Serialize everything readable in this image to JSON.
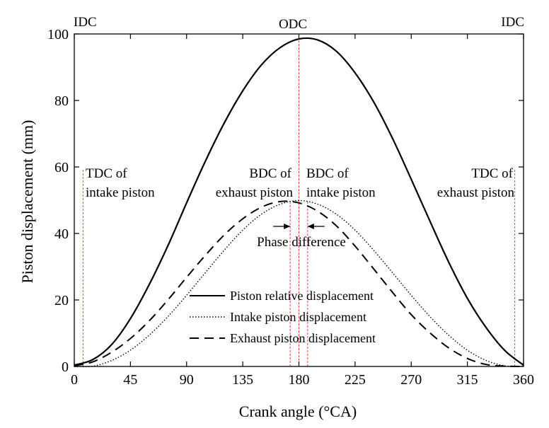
{
  "chart_data": {
    "type": "line",
    "title": "",
    "xlabel": "Crank angle (°CA)",
    "ylabel": "Piston displacement (mm)",
    "xlim": [
      0,
      360
    ],
    "ylim": [
      0,
      100
    ],
    "xticks": [
      0,
      45,
      90,
      135,
      180,
      225,
      270,
      315,
      360
    ],
    "yticks": [
      0,
      20,
      40,
      60,
      80,
      100
    ],
    "grid": false,
    "legend_position": "bottom-center",
    "phase_offset_degCA": 7,
    "series": [
      {
        "name": "Piston relative displacement",
        "style": "solid",
        "x": [
          0,
          15,
          30,
          45,
          60,
          75,
          90,
          105,
          120,
          135,
          150,
          165,
          180,
          195,
          210,
          225,
          240,
          255,
          270,
          285,
          300,
          315,
          330,
          345,
          360
        ],
        "y": [
          0.4,
          2.1,
          6.6,
          14.4,
          24.6,
          36.3,
          49.2,
          61.7,
          73.1,
          82.9,
          90.7,
          95.9,
          98.5,
          98.2,
          94.8,
          88.3,
          79.5,
          68.6,
          56.3,
          43.7,
          31.4,
          20.5,
          11.7,
          4.8,
          0.4
        ]
      },
      {
        "name": "Intake piston displacement",
        "style": "dotted",
        "x": [
          0,
          15,
          30,
          45,
          60,
          75,
          90,
          105,
          120,
          135,
          150,
          165,
          180,
          195,
          210,
          225,
          240,
          255,
          270,
          285,
          300,
          315,
          330,
          345,
          360
        ],
        "y": [
          0,
          0.1,
          1.8,
          4.9,
          9.4,
          15.0,
          21.4,
          28.2,
          34.9,
          41.0,
          45.8,
          48.8,
          49.9,
          48.8,
          45.8,
          41.0,
          34.9,
          28.2,
          21.4,
          15.0,
          9.4,
          4.9,
          1.8,
          0.2,
          0
        ]
      },
      {
        "name": "Exhaust piston displacement",
        "style": "dashed",
        "x": [
          0,
          15,
          30,
          45,
          60,
          75,
          90,
          105,
          120,
          135,
          150,
          165,
          180,
          195,
          210,
          225,
          240,
          255,
          270,
          285,
          300,
          315,
          330,
          345,
          360
        ],
        "y": [
          0.2,
          1.4,
          4.3,
          8.4,
          13.7,
          20.0,
          26.8,
          33.4,
          39.5,
          44.4,
          47.9,
          49.6,
          49.2,
          46.7,
          42.3,
          36.2,
          29.3,
          22.3,
          15.6,
          10.1,
          5.6,
          2.4,
          0.6,
          0.1,
          0
        ]
      }
    ],
    "markers": [
      {
        "x": 7,
        "label": "TDC of intake piston",
        "lines": [
          "TDC of",
          "intake piston"
        ]
      },
      {
        "x": 173,
        "label": "BDC of exhaust piston",
        "lines": [
          "BDC of",
          "exhaust piston"
        ]
      },
      {
        "x": 180,
        "label": "ODC",
        "lines": [
          "ODC"
        ]
      },
      {
        "x": 187,
        "label": "BDC of intake piston",
        "lines": [
          "BDC of",
          "intake piston"
        ]
      },
      {
        "x": 353,
        "label": "TDC of exhaust piston",
        "lines": [
          "TDC of",
          "exhaust piston"
        ]
      }
    ],
    "top_labels": {
      "left": "IDC",
      "center": "ODC",
      "right": "IDC"
    },
    "phase_annotation": "Phase difference",
    "colors": {
      "axes": "#000000",
      "curve": "#000000",
      "marker_line": "#e8473b"
    }
  }
}
